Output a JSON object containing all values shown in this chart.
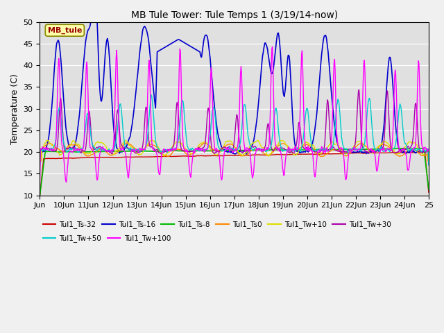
{
  "title": "MB Tule Tower: Tule Temps 1 (3/19/14-now)",
  "ylabel": "Temperature (C)",
  "ylim": [
    10,
    50
  ],
  "yticks": [
    10,
    15,
    20,
    25,
    30,
    35,
    40,
    45,
    50
  ],
  "x_tick_labels": [
    "Jun",
    "10Jun",
    "11Jun",
    "12Jun",
    "13Jun",
    "14Jun",
    "15Jun",
    "16Jun",
    "17Jun",
    "18Jun",
    "19Jun",
    "20Jun",
    "21Jun",
    "22Jun",
    "23Jun",
    "24Jun",
    "25"
  ],
  "fig_bg_color": "#f0f0f0",
  "plot_bg_color": "#e0e0e0",
  "series": [
    {
      "name": "Tul1_Ts-32",
      "color": "#cc0000",
      "lw": 1.0
    },
    {
      "name": "Tul1_Ts-16",
      "color": "#0000cc",
      "lw": 1.2
    },
    {
      "name": "Tul1_Ts-8",
      "color": "#00bb00",
      "lw": 1.2
    },
    {
      "name": "Tul1_Ts0",
      "color": "#ff8800",
      "lw": 1.0
    },
    {
      "name": "Tul1_Tw+10",
      "color": "#dddd00",
      "lw": 1.0
    },
    {
      "name": "Tul1_Tw+30",
      "color": "#aa00aa",
      "lw": 1.0
    },
    {
      "name": "Tul1_Tw+50",
      "color": "#00cccc",
      "lw": 1.0
    },
    {
      "name": "Tul1_Tw+100",
      "color": "#ff00ff",
      "lw": 1.0
    }
  ],
  "legend_box_facecolor": "#ffffaa",
  "legend_box_edgecolor": "#888800",
  "legend_label": "MB_tule",
  "legend_ncol_row1": 6,
  "legend_ncol_row2": 2
}
